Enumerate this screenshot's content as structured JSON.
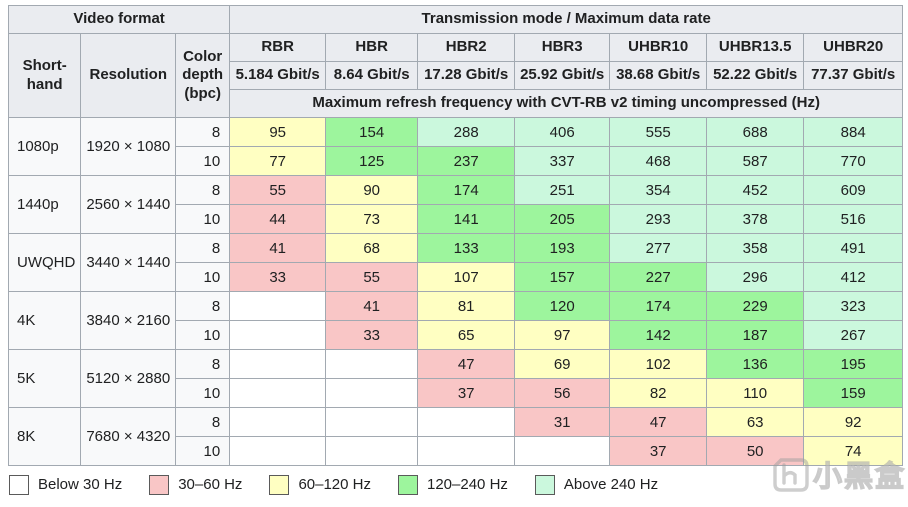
{
  "colors": {
    "bands": {
      "w": "#ffffff",
      "r": "#f9c6c6",
      "y": "#ffffc2",
      "g": "#9df59d",
      "c": "#cbf8dd"
    },
    "header_bg": "#eaecf0",
    "label_bg": "#f8f9fa",
    "border": "#a2a9b1",
    "text": "#202122"
  },
  "chart_data": {
    "type": "table",
    "header": {
      "video_format": "Video format",
      "transmission": "Transmission mode / Maximum data rate",
      "shorthand": "Short-hand",
      "resolution": "Resolution",
      "color_depth": "Color depth (bpc)",
      "modes": [
        {
          "name": "RBR",
          "rate": "5.184 Gbit/s"
        },
        {
          "name": "HBR",
          "rate": "8.64 Gbit/s"
        },
        {
          "name": "HBR2",
          "rate": "17.28 Gbit/s"
        },
        {
          "name": "HBR3",
          "rate": "25.92 Gbit/s"
        },
        {
          "name": "UHBR10",
          "rate": "38.68 Gbit/s"
        },
        {
          "name": "UHBR13.5",
          "rate": "52.22 Gbit/s"
        },
        {
          "name": "UHBR20",
          "rate": "77.37 Gbit/s"
        }
      ],
      "subheader": "Maximum refresh frequency with CVT-RB v2 timing uncompressed (Hz)"
    },
    "formats": [
      {
        "shorthand": "1080p",
        "resolution": "1920 × 1080",
        "rows": [
          {
            "bpc": "8",
            "values": [
              "95",
              "154",
              "288",
              "406",
              "555",
              "688",
              "884"
            ],
            "bands": [
              "y",
              "g",
              "c",
              "c",
              "c",
              "c",
              "c"
            ]
          },
          {
            "bpc": "10",
            "values": [
              "77",
              "125",
              "237",
              "337",
              "468",
              "587",
              "770"
            ],
            "bands": [
              "y",
              "g",
              "g",
              "c",
              "c",
              "c",
              "c"
            ]
          }
        ]
      },
      {
        "shorthand": "1440p",
        "resolution": "2560 × 1440",
        "rows": [
          {
            "bpc": "8",
            "values": [
              "55",
              "90",
              "174",
              "251",
              "354",
              "452",
              "609"
            ],
            "bands": [
              "r",
              "y",
              "g",
              "c",
              "c",
              "c",
              "c"
            ]
          },
          {
            "bpc": "10",
            "values": [
              "44",
              "73",
              "141",
              "205",
              "293",
              "378",
              "516"
            ],
            "bands": [
              "r",
              "y",
              "g",
              "g",
              "c",
              "c",
              "c"
            ]
          }
        ]
      },
      {
        "shorthand": "UWQHD",
        "resolution": "3440 × 1440",
        "rows": [
          {
            "bpc": "8",
            "values": [
              "41",
              "68",
              "133",
              "193",
              "277",
              "358",
              "491"
            ],
            "bands": [
              "r",
              "y",
              "g",
              "g",
              "c",
              "c",
              "c"
            ]
          },
          {
            "bpc": "10",
            "values": [
              "33",
              "55",
              "107",
              "157",
              "227",
              "296",
              "412"
            ],
            "bands": [
              "r",
              "r",
              "y",
              "g",
              "g",
              "c",
              "c"
            ]
          }
        ]
      },
      {
        "shorthand": "4K",
        "resolution": "3840 × 2160",
        "rows": [
          {
            "bpc": "8",
            "values": [
              "",
              "41",
              "81",
              "120",
              "174",
              "229",
              "323"
            ],
            "bands": [
              "w",
              "r",
              "y",
              "g",
              "g",
              "g",
              "c"
            ]
          },
          {
            "bpc": "10",
            "values": [
              "",
              "33",
              "65",
              "97",
              "142",
              "187",
              "267"
            ],
            "bands": [
              "w",
              "r",
              "y",
              "y",
              "g",
              "g",
              "c"
            ]
          }
        ]
      },
      {
        "shorthand": "5K",
        "resolution": "5120 × 2880",
        "rows": [
          {
            "bpc": "8",
            "values": [
              "",
              "",
              "47",
              "69",
              "102",
              "136",
              "195"
            ],
            "bands": [
              "w",
              "w",
              "r",
              "y",
              "y",
              "g",
              "g"
            ]
          },
          {
            "bpc": "10",
            "values": [
              "",
              "",
              "37",
              "56",
              "82",
              "110",
              "159"
            ],
            "bands": [
              "w",
              "w",
              "r",
              "r",
              "y",
              "y",
              "g"
            ]
          }
        ]
      },
      {
        "shorthand": "8K",
        "resolution": "7680 × 4320",
        "rows": [
          {
            "bpc": "8",
            "values": [
              "",
              "",
              "",
              "31",
              "47",
              "63",
              "92"
            ],
            "bands": [
              "w",
              "w",
              "w",
              "r",
              "r",
              "y",
              "y"
            ]
          },
          {
            "bpc": "10",
            "values": [
              "",
              "",
              "",
              "",
              "37",
              "50",
              "74"
            ],
            "bands": [
              "w",
              "w",
              "w",
              "w",
              "r",
              "r",
              "y"
            ]
          }
        ]
      }
    ],
    "legend": [
      {
        "label": "Below 30 Hz",
        "band": "w"
      },
      {
        "label": "30–60 Hz",
        "band": "r"
      },
      {
        "label": "60–120 Hz",
        "band": "y"
      },
      {
        "label": "120–240 Hz",
        "band": "g"
      },
      {
        "label": "Above 240 Hz",
        "band": "c"
      }
    ]
  },
  "watermark": {
    "text": "小黑盒"
  }
}
